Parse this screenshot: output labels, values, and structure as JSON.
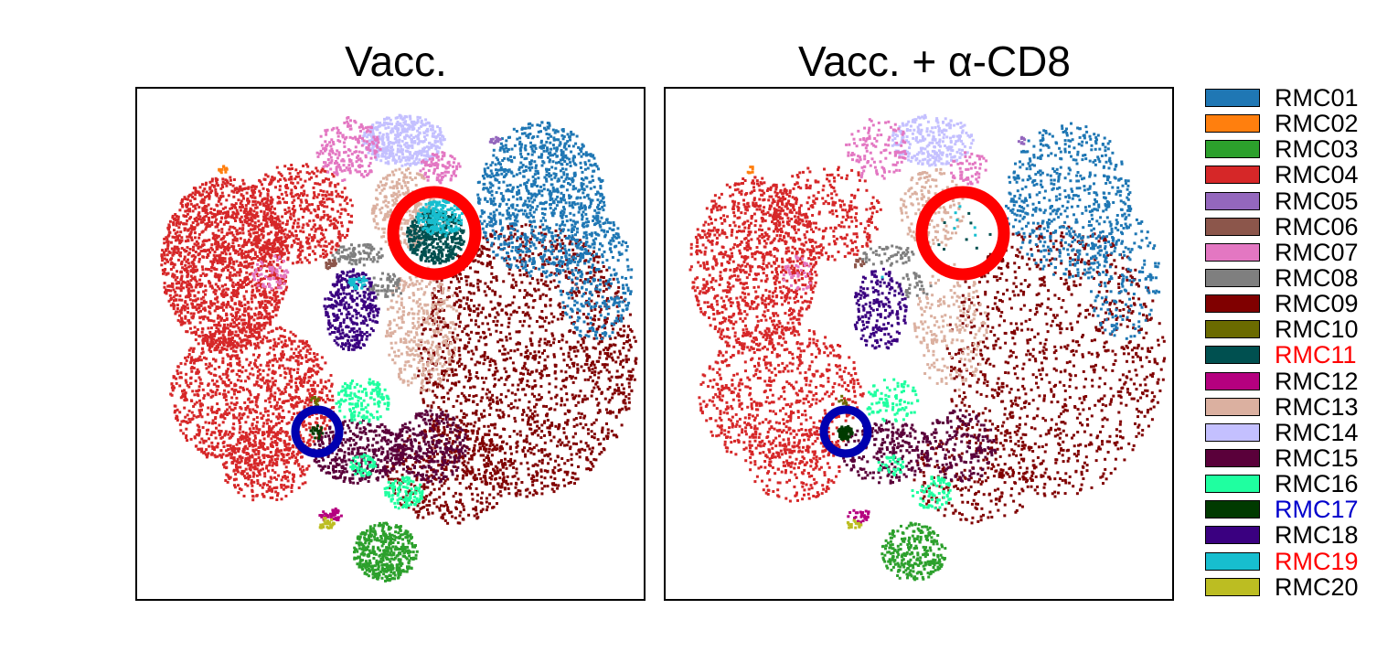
{
  "panels": [
    {
      "title": "Vacc."
    },
    {
      "title": "Vacc. + α-CD8"
    }
  ],
  "legend": [
    {
      "label": "RMC01",
      "color": "#1f77b4",
      "label_color": "#000000"
    },
    {
      "label": "RMC02",
      "color": "#ff7f0e",
      "label_color": "#000000"
    },
    {
      "label": "RMC03",
      "color": "#2ca02c",
      "label_color": "#000000"
    },
    {
      "label": "RMC04",
      "color": "#d62728",
      "label_color": "#000000"
    },
    {
      "label": "RMC05",
      "color": "#9467bd",
      "label_color": "#000000"
    },
    {
      "label": "RMC06",
      "color": "#8c564b",
      "label_color": "#000000"
    },
    {
      "label": "RMC07",
      "color": "#e377c2",
      "label_color": "#000000"
    },
    {
      "label": "RMC08",
      "color": "#7f7f7f",
      "label_color": "#000000"
    },
    {
      "label": "RMC09",
      "color": "#800000",
      "label_color": "#000000"
    },
    {
      "label": "RMC10",
      "color": "#6b6b00",
      "label_color": "#000000"
    },
    {
      "label": "RMC11",
      "color": "#005050",
      "label_color": "#ff0000"
    },
    {
      "label": "RMC12",
      "color": "#b5007f",
      "label_color": "#000000"
    },
    {
      "label": "RMC13",
      "color": "#dbb0a0",
      "label_color": "#000000"
    },
    {
      "label": "RMC14",
      "color": "#c4c0ff",
      "label_color": "#000000"
    },
    {
      "label": "RMC15",
      "color": "#5a003a",
      "label_color": "#000000"
    },
    {
      "label": "RMC16",
      "color": "#1fffa0",
      "label_color": "#000000"
    },
    {
      "label": "RMC17",
      "color": "#003a00",
      "label_color": "#0000cc"
    },
    {
      "label": "RMC18",
      "color": "#3a0080",
      "label_color": "#000000"
    },
    {
      "label": "RMC19",
      "color": "#17becf",
      "label_color": "#ff0000"
    },
    {
      "label": "RMC20",
      "color": "#bcbd22",
      "label_color": "#000000"
    }
  ],
  "chart_data": {
    "type": "scatter",
    "title": "",
    "xlabel": "",
    "ylabel": "",
    "axes_visible": false,
    "grid": false,
    "legend_placement": "right",
    "facets": [
      "Vacc.",
      "Vacc. + α-CD8"
    ],
    "series": [
      "RMC01",
      "RMC02",
      "RMC03",
      "RMC04",
      "RMC05",
      "RMC06",
      "RMC07",
      "RMC08",
      "RMC09",
      "RMC10",
      "RMC11",
      "RMC12",
      "RMC13",
      "RMC14",
      "RMC15",
      "RMC16",
      "RMC17",
      "RMC18",
      "RMC19",
      "RMC20"
    ],
    "highlighted_clusters": [
      {
        "cluster": "RMC11",
        "marker_color": "#ff0000"
      },
      {
        "cluster": "RMC19",
        "marker_color": "#ff0000"
      },
      {
        "cluster": "RMC17",
        "marker_color": "#0000b0"
      }
    ]
  }
}
